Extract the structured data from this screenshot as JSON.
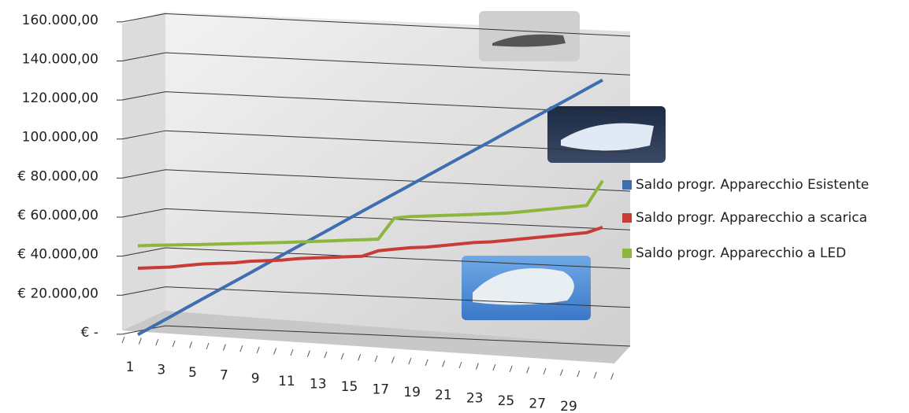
{
  "chart_data": {
    "type": "line",
    "categories": [
      1,
      null,
      3,
      null,
      5,
      null,
      7,
      null,
      9,
      null,
      11,
      null,
      13,
      null,
      15,
      null,
      17,
      null,
      19,
      null,
      21,
      null,
      23,
      null,
      25,
      null,
      27,
      null,
      29,
      null
    ],
    "series": [
      {
        "name": "Saldo progr. Apparecchio Esistente",
        "color": "#3e6db0",
        "values": [
          0,
          4700,
          9400,
          14200,
          18900,
          23600,
          28300,
          33000,
          37800,
          42500,
          47200,
          51900,
          56600,
          61400,
          66100,
          70800,
          75500,
          80200,
          85000,
          89700,
          94400,
          99100,
          103800,
          108600,
          113300,
          118000,
          122700,
          127400,
          132200,
          137000
        ]
      },
      {
        "name": "Saldo progr. Apparecchio a scarica",
        "color": "#c83c36",
        "values": [
          34000,
          34500,
          35000,
          36000,
          37000,
          37500,
          38000,
          39000,
          39500,
          40000,
          41000,
          41500,
          42000,
          42500,
          43000,
          46000,
          47000,
          48000,
          48500,
          49500,
          50500,
          51500,
          52000,
          53000,
          54000,
          55000,
          56000,
          57000,
          58000,
          61000
        ]
      },
      {
        "name": "Saldo progr. Apparecchio a LED",
        "color": "#8db63c",
        "values": [
          45500,
          46000,
          46300,
          46700,
          47000,
          47400,
          47800,
          48200,
          48600,
          49000,
          49500,
          50000,
          50500,
          51000,
          51500,
          52000,
          63000,
          64000,
          64500,
          65000,
          65500,
          66000,
          66500,
          67000,
          68000,
          69000,
          70000,
          71000,
          72000,
          85000
        ]
      }
    ],
    "ylim": [
      0,
      160000
    ],
    "yticks": [
      {
        "value": 0,
        "label": "€ -"
      },
      {
        "value": 20000,
        "label": "€ 20.000,00"
      },
      {
        "value": 40000,
        "label": "€ 40.000,00"
      },
      {
        "value": 60000,
        "label": "€ 60.000,00"
      },
      {
        "value": 80000,
        "label": "€ 80.000,00"
      },
      {
        "value": 100000,
        "label": "100.000,00"
      },
      {
        "value": 120000,
        "label": "120.000,00"
      },
      {
        "value": 140000,
        "label": "140.000,00"
      },
      {
        "value": 160000,
        "label": "160.000,00"
      }
    ],
    "grid": true
  }
}
